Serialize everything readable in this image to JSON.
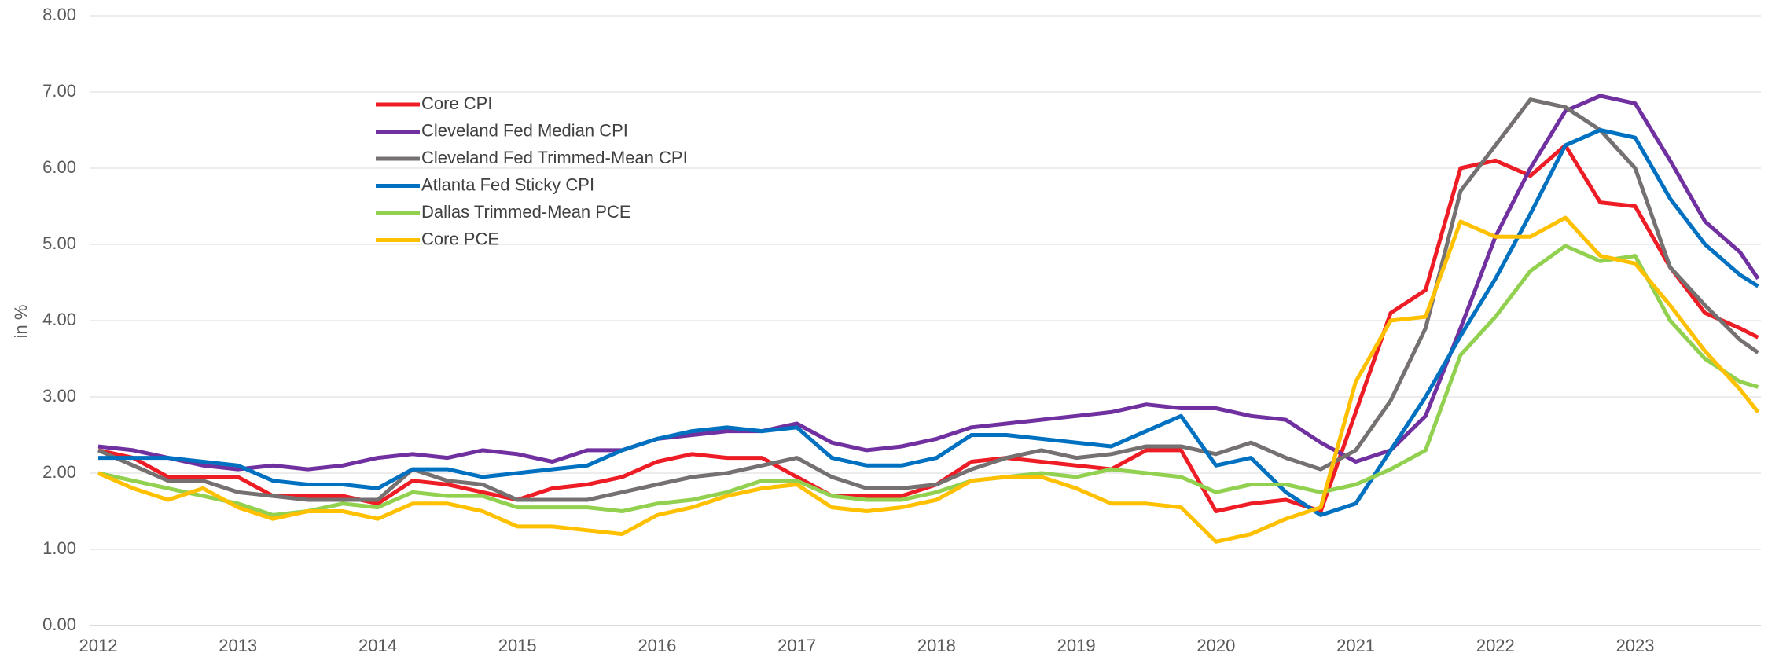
{
  "chart_data": {
    "type": "line",
    "y_label": "in %",
    "x": [
      2012,
      2012.25,
      2012.5,
      2012.75,
      2013,
      2013.25,
      2013.5,
      2013.75,
      2014,
      2014.25,
      2014.5,
      2014.75,
      2015,
      2015.25,
      2015.5,
      2015.75,
      2016,
      2016.25,
      2016.5,
      2016.75,
      2017,
      2017.25,
      2017.5,
      2017.75,
      2018,
      2018.25,
      2018.5,
      2018.75,
      2019,
      2019.25,
      2019.5,
      2019.75,
      2020,
      2020.25,
      2020.5,
      2020.75,
      2021,
      2021.25,
      2021.5,
      2021.75,
      2022,
      2022.25,
      2022.5,
      2022.75,
      2023,
      2023.25,
      2023.5,
      2023.75,
      2023.88
    ],
    "xlim": [
      2012,
      2023.9
    ],
    "xticks": [
      2012,
      2013,
      2014,
      2015,
      2016,
      2017,
      2018,
      2019,
      2020,
      2021,
      2022,
      2023
    ],
    "ylim": [
      0,
      8
    ],
    "yticks": [
      {
        "value": 0,
        "label": "0.00"
      },
      {
        "value": 1,
        "label": "1.00"
      },
      {
        "value": 2,
        "label": "2.00"
      },
      {
        "value": 3,
        "label": "3.00"
      },
      {
        "value": 4,
        "label": "4.00"
      },
      {
        "value": 5,
        "label": "5.00"
      },
      {
        "value": 6,
        "label": "6.00"
      },
      {
        "value": 7,
        "label": "7.00"
      },
      {
        "value": 8,
        "label": "8.00"
      }
    ],
    "grid": true,
    "legend": "upper left",
    "series": [
      {
        "name": "Core CPI",
        "color": "#ee1c25",
        "values": [
          2.3,
          2.2,
          1.95,
          1.95,
          1.95,
          1.7,
          1.7,
          1.7,
          1.6,
          1.9,
          1.85,
          1.75,
          1.65,
          1.8,
          1.85,
          1.95,
          2.15,
          2.25,
          2.2,
          2.2,
          1.95,
          1.7,
          1.7,
          1.7,
          1.85,
          2.15,
          2.2,
          2.15,
          2.1,
          2.05,
          2.3,
          2.3,
          1.5,
          1.6,
          1.65,
          1.5,
          2.8,
          4.1,
          4.4,
          6.0,
          6.1,
          5.9,
          6.3,
          5.55,
          5.5,
          4.7,
          4.1,
          3.9,
          3.78
        ]
      },
      {
        "name": "Cleveland Fed Median CPI",
        "color": "#7030a0",
        "values": [
          2.35,
          2.3,
          2.2,
          2.1,
          2.05,
          2.1,
          2.05,
          2.1,
          2.2,
          2.25,
          2.2,
          2.3,
          2.25,
          2.15,
          2.3,
          2.3,
          2.45,
          2.5,
          2.55,
          2.55,
          2.65,
          2.4,
          2.3,
          2.35,
          2.45,
          2.6,
          2.65,
          2.7,
          2.75,
          2.8,
          2.9,
          2.85,
          2.85,
          2.75,
          2.7,
          2.4,
          2.15,
          2.3,
          2.75,
          3.9,
          5.1,
          6.0,
          6.75,
          6.95,
          6.85,
          6.1,
          5.3,
          4.9,
          4.55
        ]
      },
      {
        "name": "Cleveland Fed Trimmed-Mean CPI",
        "color": "#767171",
        "values": [
          2.3,
          2.1,
          1.9,
          1.9,
          1.75,
          1.7,
          1.65,
          1.65,
          1.65,
          2.05,
          1.9,
          1.85,
          1.65,
          1.65,
          1.65,
          1.75,
          1.85,
          1.95,
          2.0,
          2.1,
          2.2,
          1.95,
          1.8,
          1.8,
          1.85,
          2.05,
          2.2,
          2.3,
          2.2,
          2.25,
          2.35,
          2.35,
          2.25,
          2.4,
          2.2,
          2.05,
          2.3,
          2.95,
          3.9,
          5.7,
          6.3,
          6.9,
          6.8,
          6.5,
          6.0,
          4.7,
          4.2,
          3.75,
          3.58
        ]
      },
      {
        "name": "Atlanta Fed Sticky CPI",
        "color": "#0070c0",
        "values": [
          2.2,
          2.2,
          2.2,
          2.15,
          2.1,
          1.9,
          1.85,
          1.85,
          1.8,
          2.05,
          2.05,
          1.95,
          2.0,
          2.05,
          2.1,
          2.3,
          2.45,
          2.55,
          2.6,
          2.55,
          2.6,
          2.2,
          2.1,
          2.1,
          2.2,
          2.5,
          2.5,
          2.45,
          2.4,
          2.35,
          2.55,
          2.75,
          2.1,
          2.2,
          1.75,
          1.45,
          1.6,
          2.3,
          3.0,
          3.8,
          4.55,
          5.4,
          6.3,
          6.5,
          6.4,
          5.6,
          5.0,
          4.6,
          4.45
        ]
      },
      {
        "name": "Dallas Trimmed-Mean PCE",
        "color": "#92d050",
        "values": [
          2.0,
          1.9,
          1.8,
          1.7,
          1.6,
          1.45,
          1.5,
          1.6,
          1.55,
          1.75,
          1.7,
          1.7,
          1.55,
          1.55,
          1.55,
          1.5,
          1.6,
          1.65,
          1.75,
          1.9,
          1.9,
          1.7,
          1.65,
          1.65,
          1.75,
          1.9,
          1.95,
          2.0,
          1.95,
          2.05,
          2.0,
          1.95,
          1.75,
          1.85,
          1.85,
          1.75,
          1.85,
          2.05,
          2.3,
          3.55,
          4.05,
          4.65,
          4.98,
          4.78,
          4.85,
          4.0,
          3.5,
          3.2,
          3.13
        ]
      },
      {
        "name": "Core PCE",
        "color": "#ffc000",
        "values": [
          2.0,
          1.8,
          1.65,
          1.8,
          1.55,
          1.4,
          1.5,
          1.5,
          1.4,
          1.6,
          1.6,
          1.5,
          1.3,
          1.3,
          1.25,
          1.2,
          1.45,
          1.55,
          1.7,
          1.8,
          1.85,
          1.55,
          1.5,
          1.55,
          1.65,
          1.9,
          1.95,
          1.95,
          1.8,
          1.6,
          1.6,
          1.55,
          1.1,
          1.2,
          1.4,
          1.55,
          3.2,
          4.0,
          4.05,
          5.3,
          5.1,
          5.1,
          5.35,
          4.85,
          4.75,
          4.2,
          3.6,
          3.1,
          2.8
        ]
      }
    ]
  }
}
